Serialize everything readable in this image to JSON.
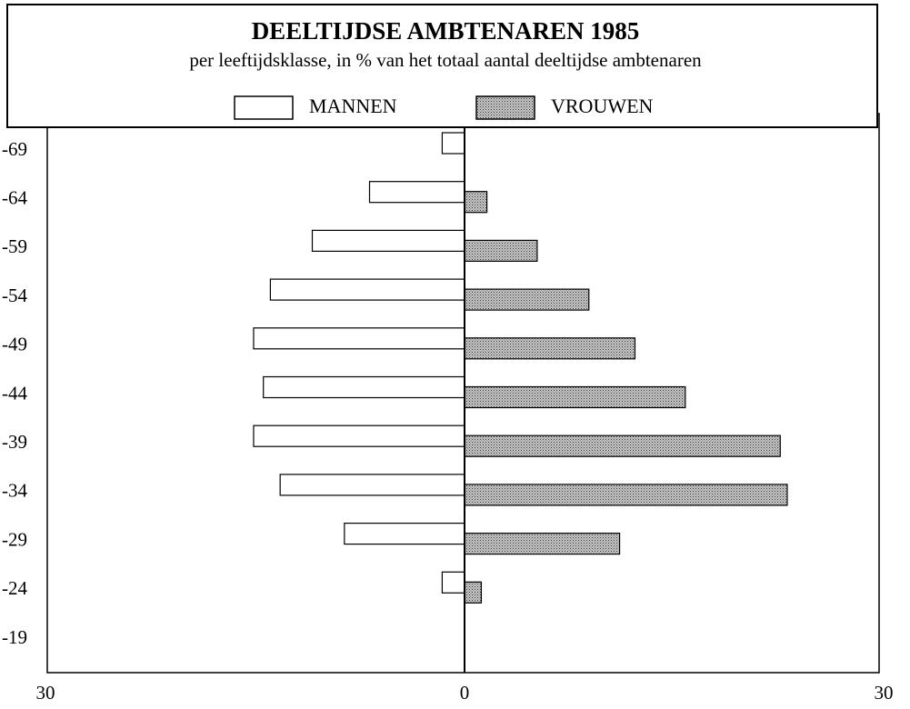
{
  "chart_data": {
    "type": "pyramid",
    "title": "DEELTIJDSE AMBTENAREN 1985",
    "subtitle": "per leeftijdsklasse, in % van het totaal aantal deeltijdse ambtenaren",
    "categories": [
      "-69",
      "-64",
      "-59",
      "-54",
      "-49",
      "-44",
      "-39",
      "-34",
      "-29",
      "-24",
      "-19"
    ],
    "series": [
      {
        "name": "MANNEN",
        "color": "#ffffff",
        "side": "left",
        "values": [
          1.6,
          6.8,
          10.9,
          13.9,
          15.1,
          14.4,
          15.1,
          13.2,
          8.6,
          1.6,
          0
        ]
      },
      {
        "name": "VROUWEN",
        "color": "#a8a8a8",
        "side": "right",
        "values": [
          0,
          1.6,
          5.2,
          8.9,
          12.2,
          15.8,
          22.6,
          23.1,
          11.1,
          1.2,
          0
        ]
      }
    ],
    "xlim": [
      -30,
      30
    ],
    "xticks": [
      {
        "value": -30,
        "label": "30"
      },
      0,
      30
    ]
  }
}
